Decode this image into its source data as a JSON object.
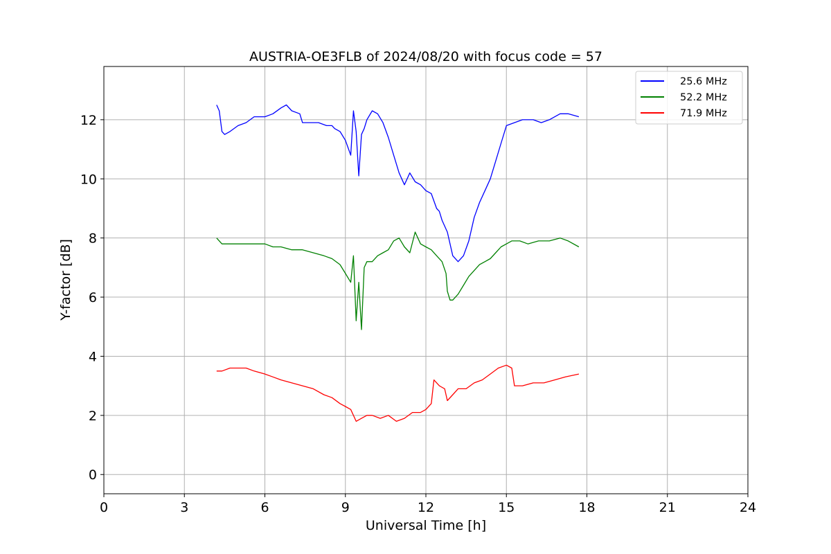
{
  "chart_data": {
    "type": "line",
    "title": "AUSTRIA-OE3FLB of 2024/08/20 with focus code = 57",
    "xlabel": "Universal Time [h]",
    "ylabel": "Y-factor [dB]",
    "xlim": [
      0,
      24
    ],
    "ylim": [
      -0.65,
      13.8
    ],
    "xticks": [
      0,
      3,
      6,
      9,
      12,
      15,
      18,
      21,
      24
    ],
    "yticks": [
      0,
      2,
      4,
      6,
      8,
      10,
      12
    ],
    "grid": true,
    "legend_position": "top-right",
    "series": [
      {
        "name": "25.6 MHz",
        "color": "#0000ff",
        "x": [
          4.2,
          4.3,
          4.4,
          4.5,
          4.7,
          5.0,
          5.3,
          5.6,
          6.0,
          6.3,
          6.6,
          6.8,
          7.0,
          7.3,
          7.4,
          7.6,
          8.0,
          8.3,
          8.5,
          8.6,
          8.8,
          9.0,
          9.2,
          9.3,
          9.4,
          9.5,
          9.6,
          9.7,
          9.8,
          10.0,
          10.2,
          10.4,
          10.6,
          10.8,
          11.0,
          11.2,
          11.4,
          11.6,
          11.8,
          12.0,
          12.2,
          12.4,
          12.5,
          12.6,
          12.8,
          13.0,
          13.2,
          13.4,
          13.6,
          13.8,
          14.0,
          14.2,
          14.4,
          14.6,
          14.8,
          15.0,
          15.3,
          15.6,
          16.0,
          16.3,
          16.6,
          17.0,
          17.3,
          17.7
        ],
        "y": [
          12.5,
          12.3,
          11.6,
          11.5,
          11.6,
          11.8,
          11.9,
          12.1,
          12.1,
          12.2,
          12.4,
          12.5,
          12.3,
          12.2,
          11.9,
          11.9,
          11.9,
          11.8,
          11.8,
          11.7,
          11.6,
          11.3,
          10.8,
          12.3,
          11.6,
          10.1,
          11.5,
          11.7,
          12.0,
          12.3,
          12.2,
          11.9,
          11.4,
          10.8,
          10.2,
          9.8,
          10.2,
          9.9,
          9.8,
          9.6,
          9.5,
          9.0,
          8.9,
          8.6,
          8.2,
          7.4,
          7.2,
          7.4,
          7.9,
          8.7,
          9.2,
          9.6,
          10.0,
          10.6,
          11.2,
          11.8,
          11.9,
          12.0,
          12.0,
          11.9,
          12.0,
          12.2,
          12.2,
          12.1
        ]
      },
      {
        "name": "52.2 MHz",
        "color": "#008000",
        "x": [
          4.2,
          4.4,
          4.7,
          5.0,
          5.3,
          5.6,
          6.0,
          6.3,
          6.6,
          7.0,
          7.4,
          7.8,
          8.2,
          8.5,
          8.8,
          9.0,
          9.2,
          9.3,
          9.4,
          9.5,
          9.6,
          9.7,
          9.8,
          10.0,
          10.2,
          10.4,
          10.6,
          10.8,
          11.0,
          11.2,
          11.4,
          11.6,
          11.8,
          12.0,
          12.2,
          12.4,
          12.6,
          12.75,
          12.8,
          12.9,
          13.0,
          13.2,
          13.4,
          13.6,
          13.8,
          14.0,
          14.2,
          14.4,
          14.6,
          14.8,
          15.0,
          15.2,
          15.5,
          15.8,
          16.2,
          16.6,
          17.0,
          17.3,
          17.7
        ],
        "y": [
          8.0,
          7.8,
          7.8,
          7.8,
          7.8,
          7.8,
          7.8,
          7.7,
          7.7,
          7.6,
          7.6,
          7.5,
          7.4,
          7.3,
          7.1,
          6.8,
          6.5,
          7.4,
          5.2,
          6.5,
          4.9,
          7.0,
          7.2,
          7.2,
          7.4,
          7.5,
          7.6,
          7.9,
          8.0,
          7.7,
          7.5,
          8.2,
          7.8,
          7.7,
          7.6,
          7.4,
          7.2,
          6.8,
          6.2,
          5.9,
          5.9,
          6.1,
          6.4,
          6.7,
          6.9,
          7.1,
          7.2,
          7.3,
          7.5,
          7.7,
          7.8,
          7.9,
          7.9,
          7.8,
          7.9,
          7.9,
          8.0,
          7.9,
          7.7
        ]
      },
      {
        "name": "71.9 MHz",
        "color": "#ff0000",
        "x": [
          4.2,
          4.4,
          4.7,
          5.0,
          5.3,
          5.6,
          6.0,
          6.3,
          6.6,
          7.0,
          7.4,
          7.8,
          8.2,
          8.5,
          8.8,
          9.0,
          9.2,
          9.4,
          9.6,
          9.8,
          10.0,
          10.3,
          10.6,
          10.9,
          11.2,
          11.5,
          11.8,
          12.0,
          12.2,
          12.3,
          12.5,
          12.7,
          12.8,
          13.0,
          13.2,
          13.5,
          13.8,
          14.1,
          14.4,
          14.7,
          15.0,
          15.2,
          15.3,
          15.6,
          16.0,
          16.4,
          16.8,
          17.2,
          17.7
        ],
        "y": [
          3.5,
          3.5,
          3.6,
          3.6,
          3.6,
          3.5,
          3.4,
          3.3,
          3.2,
          3.1,
          3.0,
          2.9,
          2.7,
          2.6,
          2.4,
          2.3,
          2.2,
          1.8,
          1.9,
          2.0,
          2.0,
          1.9,
          2.0,
          1.8,
          1.9,
          2.1,
          2.1,
          2.2,
          2.4,
          3.2,
          3.0,
          2.9,
          2.5,
          2.7,
          2.9,
          2.9,
          3.1,
          3.2,
          3.4,
          3.6,
          3.7,
          3.6,
          3.0,
          3.0,
          3.1,
          3.1,
          3.2,
          3.3,
          3.4
        ]
      }
    ]
  }
}
